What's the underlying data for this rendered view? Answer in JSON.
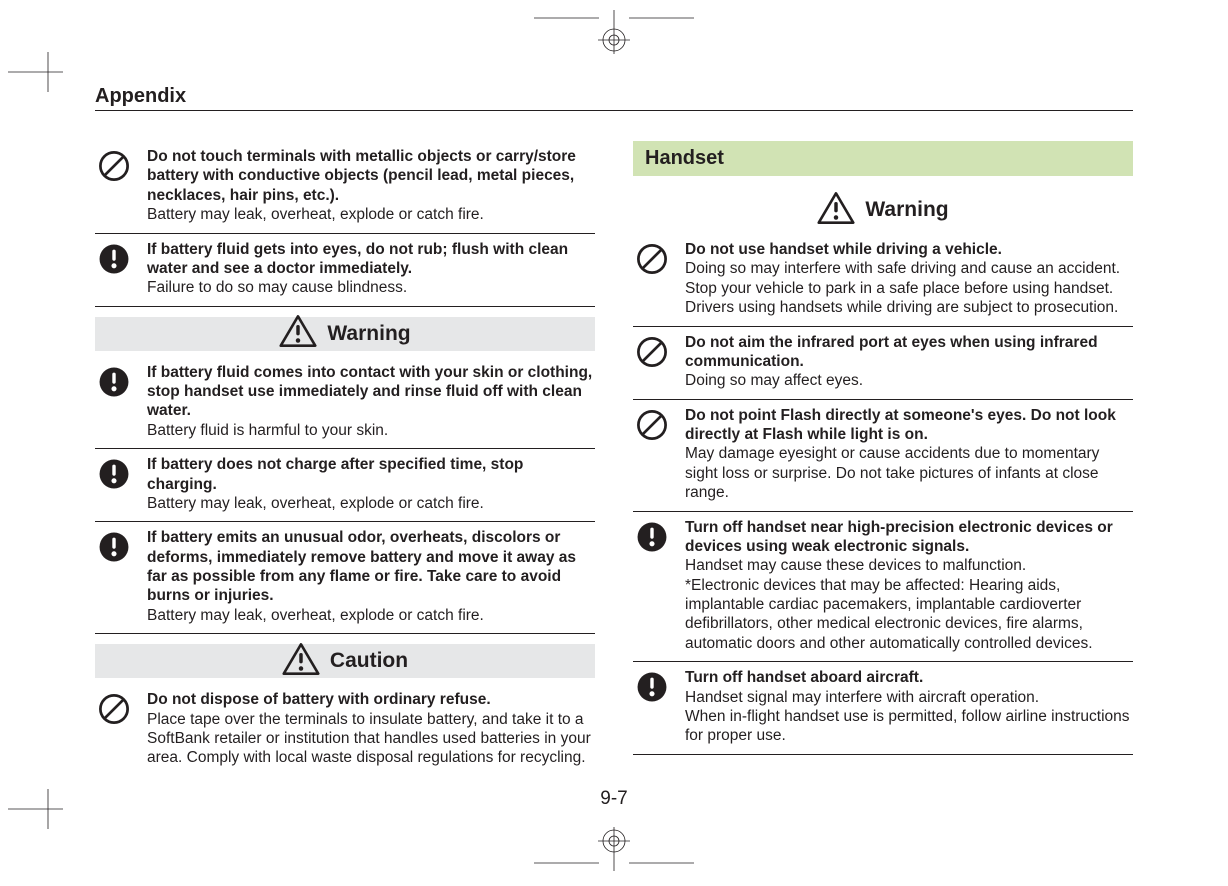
{
  "header": "Appendix",
  "pageNumber": "9-7",
  "colors": {
    "text": "#231f20",
    "sectionBg": "#d1e3b4",
    "bandBg": "#e6e7e8",
    "ruleColor": "#231f20"
  },
  "icons": {
    "prohibit": "prohibit-icon",
    "mandatory": "mandatory-icon",
    "warning": "warning-triangle-icon"
  },
  "left": {
    "group1": [
      {
        "icon": "prohibit",
        "bold": "Do not touch terminals with metallic objects or carry/store battery with conductive objects (pencil lead, metal pieces, necklaces, hair pins, etc.).",
        "body": "Battery may leak, overheat, explode or catch fire."
      },
      {
        "icon": "mandatory",
        "bold": "If battery fluid gets into eyes, do not rub; flush with clean water and see a doctor immediately.",
        "body": "Failure to do so may cause blindness."
      }
    ],
    "warningLabel": "Warning",
    "group2": [
      {
        "icon": "mandatory",
        "bold": "If battery fluid comes into contact with your skin or clothing, stop handset use immediately and rinse fluid off with clean water.",
        "body": "Battery fluid is harmful to your skin."
      },
      {
        "icon": "mandatory",
        "bold": "If battery does not charge after specified time, stop charging.",
        "body": "Battery may leak, overheat, explode or catch fire."
      },
      {
        "icon": "mandatory",
        "bold": "If battery emits an unusual odor, overheats, discolors or deforms, immediately remove battery and move it away as far as possible from any flame or fire. Take care to avoid burns or injuries.",
        "body": "Battery may leak, overheat, explode or catch fire."
      }
    ],
    "cautionLabel": "Caution",
    "group3": [
      {
        "icon": "prohibit",
        "bold": "Do not dispose of battery with ordinary refuse.",
        "body": "Place tape over the terminals to insulate battery, and take it to a SoftBank retailer or institution that handles used batteries in your area. Comply with local waste disposal regulations for recycling."
      }
    ]
  },
  "right": {
    "sectionTitle": "Handset",
    "warningLabel": "Warning",
    "group1": [
      {
        "icon": "prohibit",
        "bold": "Do not use handset while driving a vehicle.",
        "body": "Doing so may interfere with safe driving and cause an accident. Stop your vehicle to park in a safe place before using handset. Drivers using handsets while driving are subject to prosecution."
      },
      {
        "icon": "prohibit",
        "bold": "Do not aim the infrared port at eyes when using infrared communication.",
        "body": "Doing so may affect eyes."
      },
      {
        "icon": "prohibit",
        "bold": "Do not point Flash directly at someone's eyes. Do not look directly at Flash while light is on.",
        "body": "May damage eyesight or cause accidents due to momentary sight loss or surprise. Do not take pictures of infants at close range."
      },
      {
        "icon": "mandatory",
        "bold": "Turn off handset near high-precision electronic devices or devices using weak electronic signals.",
        "body": "Handset may cause these devices to malfunction.\n*Electronic devices that may be affected: Hearing aids, implantable cardiac pacemakers, implantable cardioverter defibrillators, other medical electronic devices, fire alarms, automatic doors and other automatically controlled devices."
      },
      {
        "icon": "mandatory",
        "bold": "Turn off handset aboard aircraft.",
        "body": "Handset signal may interfere with aircraft operation.\nWhen in-flight handset use is permitted, follow airline instructions for proper use."
      }
    ]
  }
}
